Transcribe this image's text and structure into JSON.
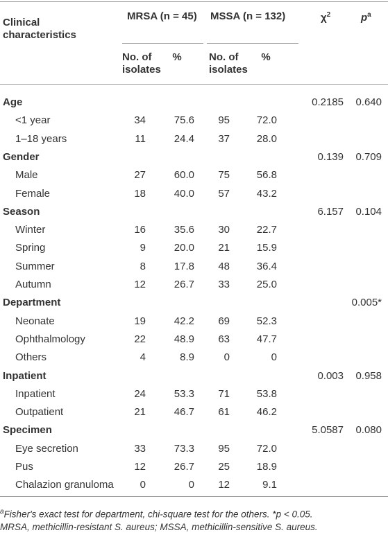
{
  "table": {
    "header": {
      "characteristics": "Clinical characteristics",
      "mrsa": "MRSA (n = 45)",
      "mssa": "MSSA (n = 132)",
      "chi": {
        "text": "χ",
        "sup": "2"
      },
      "p": {
        "text": "p",
        "sup": "a"
      }
    },
    "subheader": {
      "mrsa_no": "No. of isolates",
      "mrsa_pct": "%",
      "mssa_no": "No. of isolates",
      "mssa_pct": "%"
    },
    "groups": [
      {
        "label": "Age",
        "chi": "0.2185",
        "p": "0.640",
        "rows": [
          [
            "<1 year",
            "34",
            "75.6",
            "95",
            "72.0"
          ],
          [
            "1–18 years",
            "11",
            "24.4",
            "37",
            "28.0"
          ]
        ]
      },
      {
        "label": "Gender",
        "chi": "0.139",
        "p": "0.709",
        "rows": [
          [
            "Male",
            "27",
            "60.0",
            "75",
            "56.8"
          ],
          [
            "Female",
            "18",
            "40.0",
            "57",
            "43.2"
          ]
        ]
      },
      {
        "label": "Season",
        "chi": "6.157",
        "p": "0.104",
        "rows": [
          [
            "Winter",
            "16",
            "35.6",
            "30",
            "22.7"
          ],
          [
            "Spring",
            "9",
            "20.0",
            "21",
            "15.9"
          ],
          [
            "Summer",
            "8",
            "17.8",
            "48",
            "36.4"
          ],
          [
            "Autumn",
            "12",
            "26.7",
            "33",
            "25.0"
          ]
        ]
      },
      {
        "label": "Department",
        "chi": null,
        "p": "0.005*",
        "rows": [
          [
            "Neonate",
            "19",
            "42.2",
            "69",
            "52.3"
          ],
          [
            "Ophthalmology",
            "22",
            "48.9",
            "63",
            "47.7"
          ],
          [
            "Others",
            "4",
            "8.9",
            "0",
            "0"
          ]
        ]
      },
      {
        "label": "Inpatient",
        "chi": "0.003",
        "p": "0.958",
        "rows": [
          [
            "Inpatient",
            "24",
            "53.3",
            "71",
            "53.8"
          ],
          [
            "Outpatient",
            "21",
            "46.7",
            "61",
            "46.2"
          ]
        ]
      },
      {
        "label": "Specimen",
        "chi": "5.0587",
        "p": "0.080",
        "rows": [
          [
            "Eye secretion",
            "33",
            "73.3",
            "95",
            "72.0"
          ],
          [
            "Pus",
            "12",
            "26.7",
            "25",
            "18.9"
          ],
          [
            "Chalazion granuloma",
            "0",
            "0",
            "12",
            "9.1"
          ]
        ]
      }
    ]
  },
  "footnote": {
    "marker": "a",
    "lines": [
      "Fisher's exact test for department, chi-square test for the others. *p < 0.05.",
      "MRSA, methicillin-resistant S. aureus; MSSA, methicillin-sensitive S. aureus."
    ]
  }
}
